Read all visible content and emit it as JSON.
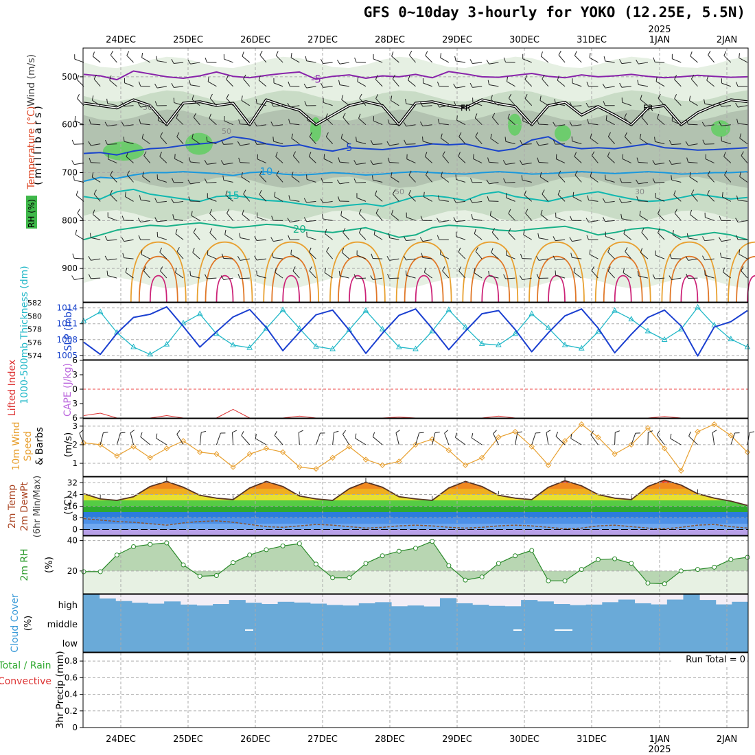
{
  "title": "GFS 0~10day 3-hourly for YOKO (12.25E, 5.5N)",
  "chart_data": {
    "type": "meteogram",
    "run_start_index": 0,
    "date_labels": [
      "24DEC",
      "25DEC",
      "26DEC",
      "27DEC",
      "28DEC",
      "29DEC",
      "30DEC",
      "31DEC",
      "1JAN",
      "2JAN"
    ],
    "year_label": "2025",
    "panels": {
      "upper_air": {
        "axis_labels": [
          "Wind (m/s)",
          "Temperature (°C)",
          "RH (%)"
        ],
        "ylabel": "(millibars)",
        "yticks": [
          500,
          600,
          700,
          800,
          900
        ],
        "ylim": [
          440,
          970
        ],
        "isotherm_labels": [
          "-5",
          "5",
          "10",
          "15",
          "20"
        ],
        "rh_contour_labels": [
          "30",
          "50"
        ],
        "freezing_label": "FR",
        "isotherms": [
          {
            "label": "-5",
            "values": [
              495,
              498,
              506,
              488,
              494,
              500,
              503,
              498,
              490,
              499,
              502,
              497,
              493,
              490,
              505,
              499,
              496,
              503,
              498,
              500,
              495,
              502,
              489,
              494,
              500,
              501,
              497,
              493,
              499,
              502,
              496,
              500,
              498,
              495,
              499,
              502,
              500,
              497,
              499,
              501,
              500
            ]
          },
          {
            "label": "5",
            "values": [
              660,
              658,
              663,
              655,
              650,
              648,
              643,
              640,
              637,
              625,
              630,
              640,
              645,
              642,
              650,
              655,
              648,
              650,
              652,
              648,
              645,
              640,
              642,
              640,
              648,
              655,
              650,
              632,
              625,
              645,
              650,
              648,
              650,
              645,
              640,
              648,
              650,
              653,
              652,
              650,
              648
            ]
          },
          {
            "label": "10",
            "values": [
              718,
              710,
              712,
              705,
              700,
              700,
              698,
              700,
              702,
              706,
              700,
              698,
              703,
              705,
              703,
              700,
              702,
              705,
              703,
              700,
              698,
              700,
              702,
              703,
              700,
              698,
              700,
              703,
              702,
              700,
              698,
              700,
              702,
              700,
              698,
              700,
              703,
              702,
              700,
              700,
              698
            ]
          },
          {
            "label": "15",
            "values": [
              750,
              755,
              740,
              735,
              745,
              750,
              755,
              760,
              750,
              748,
              752,
              758,
              760,
              765,
              770,
              772,
              768,
              765,
              770,
              760,
              750,
              748,
              752,
              758,
              745,
              740,
              750,
              755,
              760,
              752,
              745,
              740,
              748,
              755,
              760,
              758,
              752,
              745,
              750,
              755,
              752
            ]
          },
          {
            "label": "20",
            "values": [
              840,
              830,
              820,
              815,
              810,
              812,
              808,
              805,
              810,
              815,
              812,
              808,
              810,
              818,
              822,
              825,
              820,
              815,
              825,
              835,
              830,
              815,
              810,
              812,
              815,
              820,
              822,
              818,
              815,
              812,
              820,
              830,
              825,
              818,
              815,
              820,
              835,
              830,
              825,
              830,
              840
            ]
          }
        ],
        "freezing_level": [
          555,
          560,
          565,
          548,
          560,
          600,
          555,
          552,
          560,
          555,
          600,
          548,
          560,
          570,
          600,
          580,
          560,
          552,
          560,
          600,
          555,
          552,
          560,
          565,
          548,
          556,
          562,
          600,
          560,
          553,
          580,
          562,
          580,
          600,
          565,
          560,
          600,
          575,
          560,
          548,
          552
        ]
      },
      "thickness_slp": {
        "axis_labels": [
          "1000-500mb Thickness (dm)",
          "SLP (mb)"
        ],
        "thickness_yticks": [
          574,
          576,
          578,
          580,
          582
        ],
        "slp_yticks": [
          1005,
          1008,
          1011,
          1014
        ],
        "thickness_ylim": [
          573.4,
          582
        ],
        "slp_ylim": [
          1004.2,
          1015
        ],
        "slp": [
          1007.5,
          1005.2,
          1009.2,
          1012.2,
          1012.8,
          1014.2,
          1010.5,
          1006.6,
          1009.5,
          1012.3,
          1013.7,
          1010.3,
          1005.9,
          1009.4,
          1012.7,
          1013.6,
          1009.8,
          1005.4,
          1009.2,
          1012.6,
          1013.8,
          1010.1,
          1006.1,
          1009.6,
          1012.9,
          1013.5,
          1009.9,
          1005.7,
          1009.3,
          1012.5,
          1013.8,
          1010.2,
          1005.5,
          1009.0,
          1012.2,
          1013.6,
          1010.6,
          1004.9,
          1010.4,
          1011.4,
          1013.5
        ],
        "thickness": [
          579.2,
          580.6,
          577.5,
          575.3,
          574.2,
          575.7,
          578.9,
          580.3,
          577.3,
          575.6,
          575.2,
          578.1,
          580.9,
          578.1,
          575.4,
          575.0,
          577.9,
          580.8,
          578.0,
          575.3,
          575.0,
          577.7,
          580.9,
          578.3,
          575.8,
          575.6,
          577.3,
          580.3,
          578.2,
          575.6,
          575.1,
          577.6,
          580.8,
          579.5,
          577.7,
          576.4,
          578.0,
          581.3,
          578.6,
          576.5,
          575.3
        ]
      },
      "stability": {
        "axis_labels": [
          "Lifted Index",
          "CAPE (J/kg)"
        ],
        "yticks": [
          -6,
          -3,
          0,
          3,
          6
        ],
        "lifted_index_values": [
          5.5,
          5.0,
          6.0,
          6.0,
          6.0,
          5.5,
          6.0,
          6.0,
          6.0,
          4.2,
          6.0,
          6.0,
          6.0,
          5.6,
          6.0,
          6.0,
          6.0,
          6.0,
          6.0,
          5.8,
          6.0,
          6.0,
          6.0,
          6.0,
          6.0,
          5.6,
          6.0,
          6.0,
          6.0,
          6.0,
          6.0,
          6.0,
          6.0,
          6.0,
          6.0,
          5.7,
          6.0,
          6.0,
          6.0,
          6.0,
          6.0
        ]
      },
      "wind10m": {
        "axis_labels": [
          "10m Wind Speed & Barbs (m/s)"
        ],
        "yticks": [
          1,
          2,
          3
        ],
        "ylim": [
          0.3,
          3.4
        ],
        "speed": [
          2.1,
          2.0,
          1.4,
          1.9,
          1.3,
          1.8,
          2.2,
          1.6,
          1.5,
          0.8,
          1.5,
          1.8,
          1.6,
          0.8,
          0.7,
          1.3,
          1.9,
          1.2,
          0.9,
          1.1,
          2.0,
          2.3,
          1.7,
          0.9,
          1.3,
          2.4,
          2.7,
          1.9,
          0.9,
          2.2,
          3.1,
          2.4,
          1.5,
          2.0,
          2.9,
          1.8,
          0.6,
          2.7,
          3.1,
          2.5,
          1.6
        ]
      },
      "temperature2m": {
        "axis_labels": [
          "2m Temp",
          "2m DewPt",
          "(6hr Min/Max)",
          "(°C)"
        ],
        "yticks": [
          0,
          8,
          16,
          24,
          32
        ],
        "ylim": [
          -4,
          36
        ],
        "temp": [
          24.5,
          21.0,
          20.0,
          22.5,
          29.5,
          33.0,
          29.0,
          23.5,
          21.5,
          20.5,
          28.5,
          33.0,
          29.5,
          23.0,
          21.0,
          20.0,
          28.0,
          32.5,
          29.0,
          22.5,
          21.0,
          20.0,
          28.5,
          33.0,
          29.5,
          23.5,
          21.5,
          20.5,
          29.0,
          33.5,
          30.0,
          24.0,
          21.5,
          20.5,
          29.5,
          34.0,
          30.5,
          24.5,
          21.5,
          19.5,
          16.5
        ],
        "dewpoint": [
          7.5,
          6.5,
          5.5,
          5.0,
          4.0,
          3.0,
          4.5,
          5.5,
          6.0,
          5.0,
          3.5,
          2.0,
          1.5,
          2.5,
          3.5,
          3.0,
          2.0,
          1.0,
          1.5,
          2.5,
          3.0,
          2.5,
          1.5,
          1.0,
          1.5,
          2.5,
          3.0,
          2.5,
          1.5,
          0.5,
          1.0,
          2.5,
          3.0,
          2.0,
          1.0,
          0.5,
          1.5,
          3.0,
          3.5,
          2.0,
          1.0
        ]
      },
      "rh2m": {
        "axis_labels": [
          "2m RH",
          "(%)"
        ],
        "yticks": [
          20,
          40
        ],
        "ylim": [
          5,
          43
        ],
        "values": [
          19.5,
          19.5,
          30.5,
          36.0,
          37.5,
          38.5,
          24.0,
          16.5,
          17.0,
          25.5,
          30.5,
          34.0,
          36.5,
          38.0,
          24.5,
          15.5,
          15.5,
          25.0,
          30.0,
          33.0,
          35.0,
          39.5,
          23.5,
          14.0,
          16.0,
          25.0,
          30.0,
          33.5,
          13.5,
          13.5,
          21.0,
          27.5,
          28.0,
          25.0,
          12.0,
          11.5,
          20.0,
          21.0,
          22.5,
          27.5,
          29.0
        ]
      },
      "cloud": {
        "axis_labels": [
          "Cloud Cover",
          "(%)"
        ],
        "levels": [
          "high",
          "middle",
          "low"
        ],
        "high_cover_pct": [
          100,
          78,
          64,
          55,
          50,
          62,
          45,
          40,
          48,
          70,
          55,
          48,
          60,
          56,
          50,
          43,
          40,
          52,
          58,
          36,
          40,
          35,
          80,
          52,
          44,
          38,
          36,
          70,
          62,
          48,
          42,
          45,
          58,
          72,
          52,
          46,
          72,
          100,
          70,
          46,
          60
        ]
      },
      "precip": {
        "axis_labels": [
          "Total / Rain",
          "Convective",
          "3hr Precip (mm)"
        ],
        "yticks": [
          0,
          0.2,
          0.4,
          0.6,
          0.8
        ],
        "ylim": [
          0,
          0.9
        ],
        "run_total_label": "Run Total = 0",
        "total": [
          0,
          0,
          0,
          0,
          0,
          0,
          0,
          0,
          0,
          0,
          0,
          0,
          0,
          0,
          0,
          0,
          0,
          0,
          0,
          0,
          0,
          0,
          0,
          0,
          0,
          0,
          0,
          0,
          0,
          0,
          0,
          0,
          0,
          0,
          0,
          0,
          0,
          0,
          0,
          0,
          0
        ]
      }
    }
  }
}
